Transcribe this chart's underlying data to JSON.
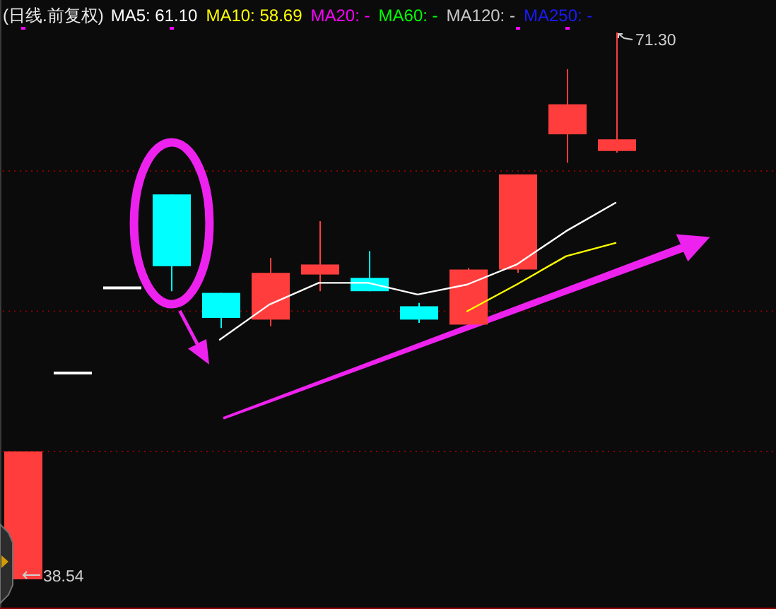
{
  "chart_data": {
    "type": "candlestick",
    "title": "(日线.前复权)",
    "categories": [
      null,
      null,
      null,
      null,
      null,
      null,
      null,
      null,
      null,
      null,
      null,
      null,
      null
    ],
    "ohlc": [
      [
        38.54,
        46.2,
        38.54,
        46.2
      ],
      [
        50.9,
        50.9,
        50.9,
        50.9
      ],
      [
        56.0,
        56.0,
        56.0,
        56.0
      ],
      [
        61.6,
        61.6,
        55.8,
        57.3
      ],
      [
        55.7,
        55.7,
        53.6,
        54.2
      ],
      [
        54.1,
        57.8,
        53.7,
        56.9
      ],
      [
        56.8,
        60.0,
        55.8,
        57.4
      ],
      [
        56.6,
        58.2,
        55.8,
        55.8
      ],
      [
        54.9,
        55.1,
        53.9,
        54.1
      ],
      [
        53.8,
        57.2,
        53.8,
        57.1
      ],
      [
        57.1,
        62.8,
        56.9,
        62.8
      ],
      [
        65.2,
        69.1,
        63.5,
        67.0
      ],
      [
        64.2,
        71.3,
        64.1,
        64.9
      ]
    ],
    "colors": [
      "#ff3d3d",
      "#ffffff",
      "#ffffff",
      "#00ffff",
      "#00ffff",
      "#ff3d3d",
      "#ff3d3d",
      "#00ffff",
      "#00ffff",
      "#ff3d3d",
      "#ff3d3d",
      "#ff3d3d",
      "#ff3d3d"
    ],
    "series": [
      {
        "type": "line",
        "name": "MA5: 61.10",
        "color": "#ffffff",
        "values": [
          null,
          null,
          null,
          null,
          52.9,
          55.0,
          56.3,
          56.3,
          55.6,
          56.2,
          57.4,
          59.4,
          61.1
        ]
      },
      {
        "type": "line",
        "name": "MA10: 58.69",
        "color": "#ffff00",
        "values": [
          null,
          null,
          null,
          null,
          null,
          null,
          null,
          null,
          null,
          54.6,
          56.2,
          57.9,
          58.69
        ]
      },
      {
        "type": "line",
        "name": "MA20: -",
        "color": "#ff00ff",
        "values": [
          null,
          null,
          null,
          null,
          null,
          null,
          null,
          null,
          null,
          null,
          null,
          null,
          null
        ]
      },
      {
        "type": "line",
        "name": "MA60: -",
        "color": "#00ff00",
        "values": [
          null,
          null,
          null,
          null,
          null,
          null,
          null,
          null,
          null,
          null,
          null,
          null,
          null
        ]
      },
      {
        "type": "line",
        "name": "MA120: -",
        "color": "#c8c8c8",
        "values": [
          null,
          null,
          null,
          null,
          null,
          null,
          null,
          null,
          null,
          null,
          null,
          null,
          null
        ]
      },
      {
        "type": "line",
        "name": "MA250: -",
        "color": "#1a1aff",
        "values": [
          null,
          null,
          null,
          null,
          null,
          null,
          null,
          null,
          null,
          null,
          null,
          null,
          null
        ]
      }
    ],
    "ref_lines": [
      {
        "axis": "y",
        "value": 63.0,
        "color": "#8b0000",
        "line_style": "dotted"
      },
      {
        "axis": "y",
        "value": 54.6,
        "color": "#8b0000",
        "line_style": "dotted"
      },
      {
        "axis": "y",
        "value": 46.2,
        "color": "#8b0000",
        "line_style": "dotted"
      }
    ],
    "legend": "top left",
    "line_style": "solid",
    "annotations": [
      "71.30",
      "38.54"
    ]
  }
}
